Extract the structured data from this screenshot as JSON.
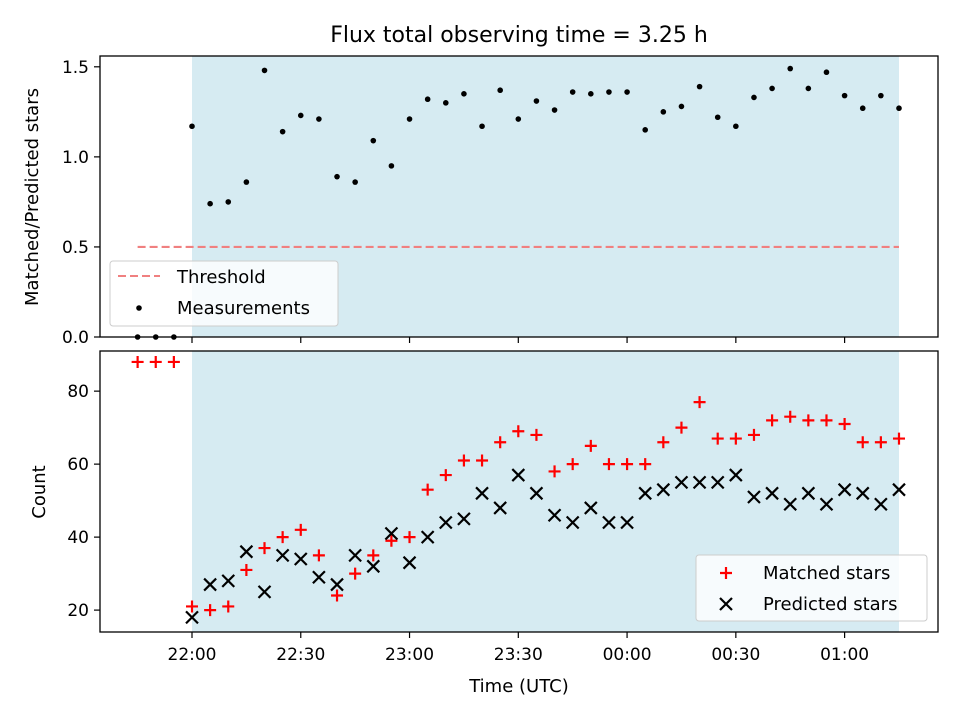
{
  "title": "Flux total observing time = 3.25 h",
  "xlabel": "Time (UTC)",
  "xticks": [
    "22:00",
    "22:30",
    "23:00",
    "23:30",
    "00:00",
    "00:30",
    "01:00"
  ],
  "colors": {
    "shade": "#add8e6",
    "threshold": "#f08080",
    "matched": "#ff0000",
    "predicted": "#000000"
  },
  "chart_data": [
    {
      "type": "scatter",
      "ylabel": "Matched/Predicted stars",
      "ylim": [
        0,
        1.56
      ],
      "yticks": [
        "0.0",
        "0.5",
        "1.0",
        "1.5"
      ],
      "shaded_span": {
        "from": "22:00",
        "to": "01:15"
      },
      "threshold": {
        "name": "Threshold",
        "y": 0.5,
        "x_from": "21:45",
        "x_to": "01:15"
      },
      "legend": {
        "placement": "lower-left",
        "entries": [
          "Threshold",
          "Measurements"
        ]
      },
      "series": [
        {
          "name": "Measurements",
          "x": [
            "21:45",
            "21:50",
            "21:55",
            "22:00",
            "22:05",
            "22:10",
            "22:15",
            "22:20",
            "22:25",
            "22:30",
            "22:35",
            "22:40",
            "22:45",
            "22:50",
            "22:55",
            "23:00",
            "23:05",
            "23:10",
            "23:15",
            "23:20",
            "23:25",
            "23:30",
            "23:35",
            "23:40",
            "23:45",
            "23:50",
            "23:55",
            "00:00",
            "00:05",
            "00:10",
            "00:15",
            "00:20",
            "00:25",
            "00:30",
            "00:35",
            "00:40",
            "00:45",
            "00:50",
            "00:55",
            "01:00",
            "01:05",
            "01:10",
            "01:15"
          ],
          "y": [
            0.0,
            0.0,
            0.0,
            1.17,
            0.74,
            0.75,
            0.86,
            1.48,
            1.14,
            1.23,
            1.21,
            0.89,
            0.86,
            1.09,
            0.95,
            1.21,
            1.32,
            1.3,
            1.35,
            1.17,
            1.37,
            1.21,
            1.31,
            1.26,
            1.36,
            1.35,
            1.36,
            1.36,
            1.15,
            1.25,
            1.28,
            1.39,
            1.22,
            1.17,
            1.33,
            1.38,
            1.49,
            1.38,
            1.47,
            1.34,
            1.27,
            1.34,
            1.27
          ]
        }
      ]
    },
    {
      "type": "scatter",
      "ylabel": "Count",
      "ylim": [
        14,
        91
      ],
      "yticks": [
        "20",
        "40",
        "60",
        "80"
      ],
      "shaded_span": {
        "from": "22:00",
        "to": "01:15"
      },
      "legend": {
        "placement": "lower-right",
        "entries": [
          "Matched stars",
          "Predicted stars"
        ]
      },
      "series": [
        {
          "name": "Matched stars",
          "marker": "+",
          "x": [
            "21:45",
            "21:50",
            "21:55",
            "22:00",
            "22:05",
            "22:10",
            "22:15",
            "22:20",
            "22:25",
            "22:30",
            "22:35",
            "22:40",
            "22:45",
            "22:50",
            "22:55",
            "23:00",
            "23:05",
            "23:10",
            "23:15",
            "23:20",
            "23:25",
            "23:30",
            "23:35",
            "23:40",
            "23:45",
            "23:50",
            "23:55",
            "00:00",
            "00:05",
            "00:10",
            "00:15",
            "00:20",
            "00:25",
            "00:30",
            "00:35",
            "00:40",
            "00:45",
            "00:50",
            "00:55",
            "01:00",
            "01:05",
            "01:10",
            "01:15"
          ],
          "y": [
            88,
            88,
            88,
            21,
            20,
            21,
            31,
            37,
            40,
            42,
            35,
            24,
            30,
            35,
            39,
            40,
            53,
            57,
            61,
            61,
            66,
            69,
            68,
            58,
            60,
            65,
            60,
            60,
            60,
            66,
            70,
            77,
            67,
            67,
            68,
            72,
            73,
            72,
            72,
            71,
            66,
            66,
            67
          ]
        },
        {
          "name": "Predicted stars",
          "marker": "x",
          "x": [
            "22:00",
            "22:05",
            "22:10",
            "22:15",
            "22:20",
            "22:25",
            "22:30",
            "22:35",
            "22:40",
            "22:45",
            "22:50",
            "22:55",
            "23:00",
            "23:05",
            "23:10",
            "23:15",
            "23:20",
            "23:25",
            "23:30",
            "23:35",
            "23:40",
            "23:45",
            "23:50",
            "23:55",
            "00:00",
            "00:05",
            "00:10",
            "00:15",
            "00:20",
            "00:25",
            "00:30",
            "00:35",
            "00:40",
            "00:45",
            "00:50",
            "00:55",
            "01:00",
            "01:05",
            "01:10",
            "01:15"
          ],
          "y": [
            18,
            27,
            28,
            36,
            25,
            35,
            34,
            29,
            27,
            35,
            32,
            41,
            33,
            40,
            44,
            45,
            52,
            48,
            57,
            52,
            46,
            44,
            48,
            44,
            44,
            52,
            53,
            55,
            55,
            55,
            57,
            51,
            52,
            49,
            52,
            49,
            53,
            52,
            49,
            53
          ]
        }
      ]
    }
  ]
}
